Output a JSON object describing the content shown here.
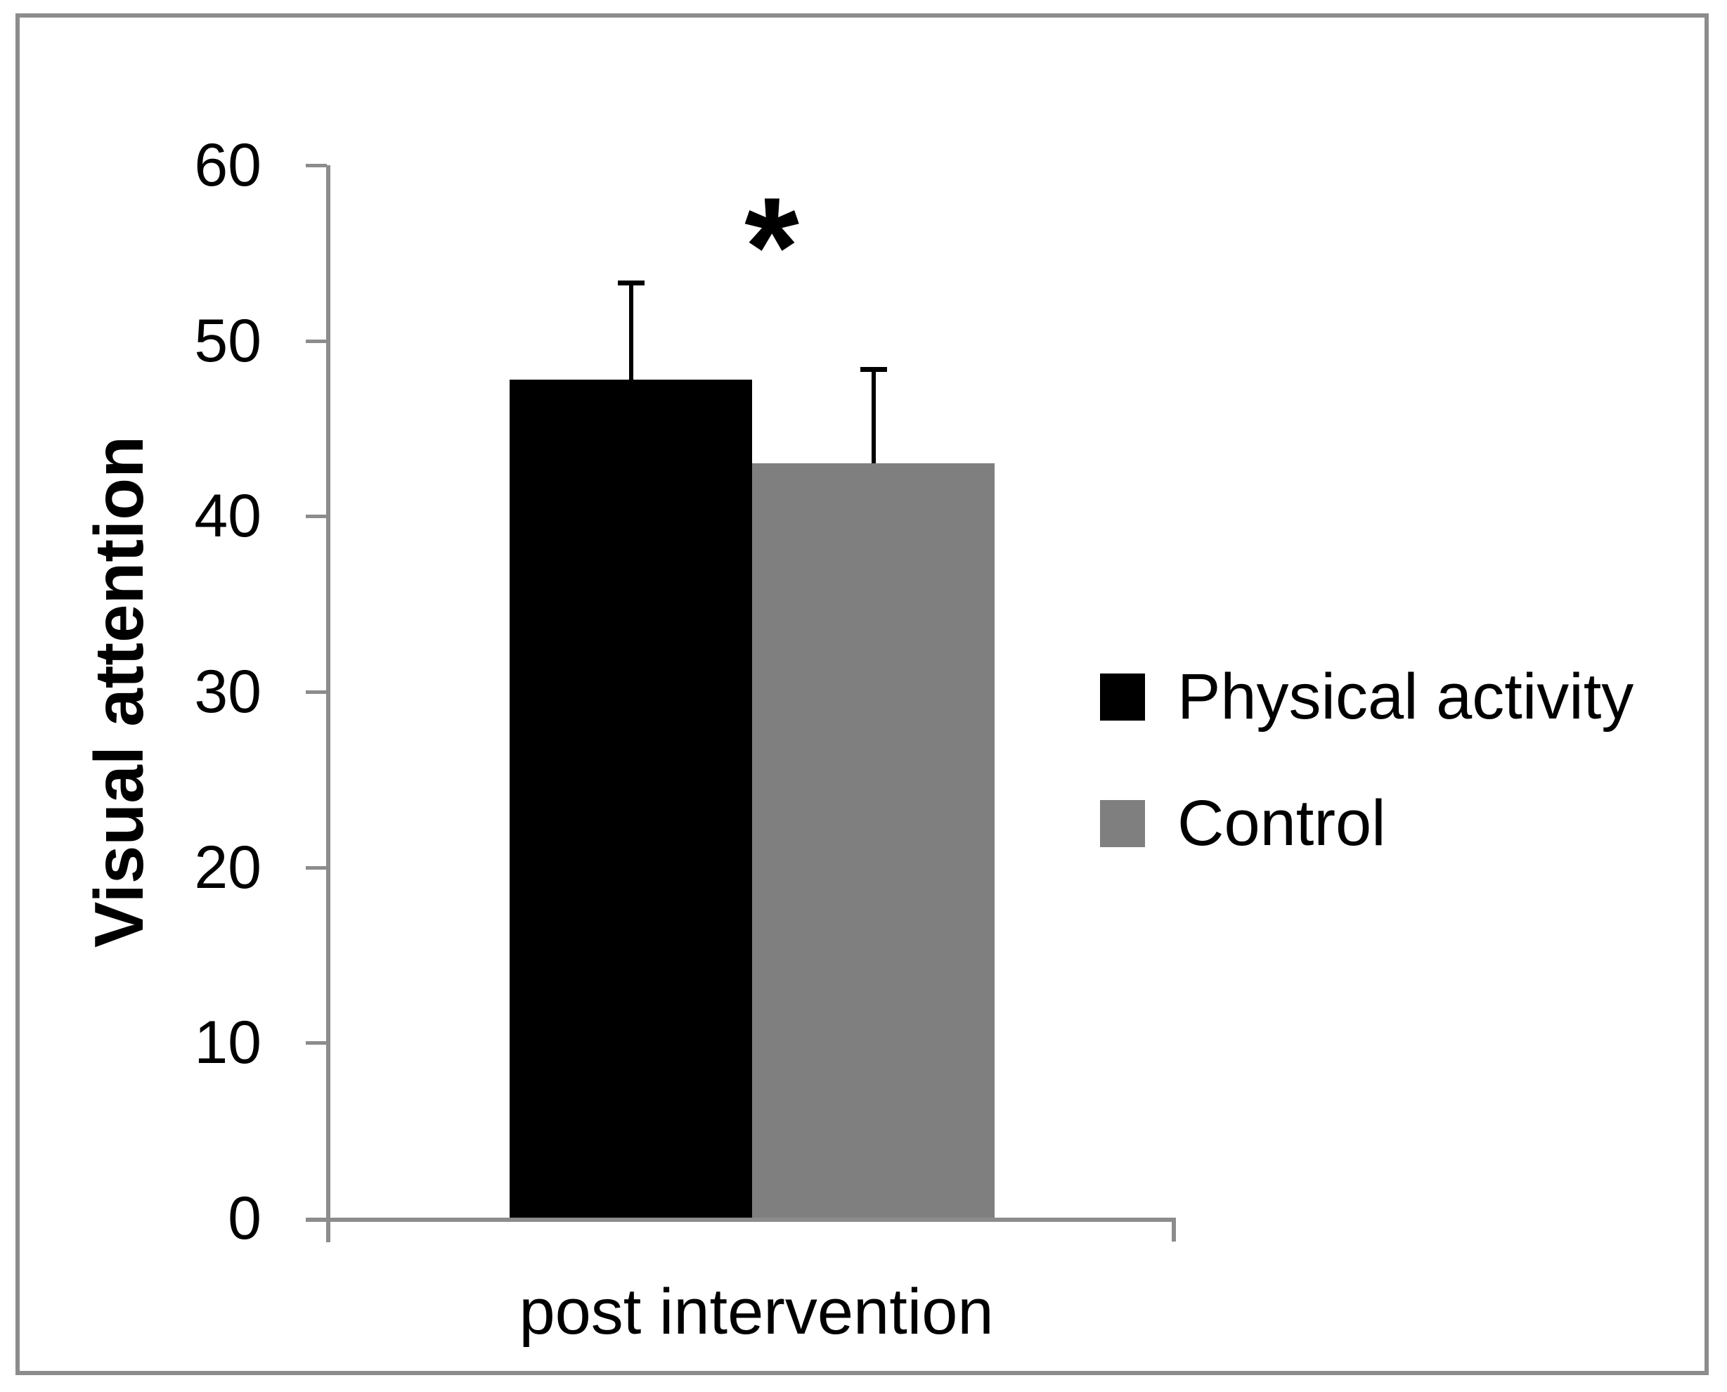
{
  "figure": {
    "background_color": "#ffffff",
    "border_color": "#8c8c8c",
    "axis_color": "#8c8c8c"
  },
  "chart_data": {
    "type": "bar",
    "title": "",
    "categories": [
      "post intervention"
    ],
    "series": [
      {
        "name": "Physical activity",
        "values": [
          47.8
        ],
        "error_plus": [
          5.5
        ],
        "color": "#000000"
      },
      {
        "name": "Control",
        "values": [
          43.0
        ],
        "error_plus": [
          5.4
        ],
        "color": "#7f7f7f"
      }
    ],
    "ylabel": "Visual attention",
    "ylim": [
      0,
      60
    ],
    "yticks": [
      0,
      10,
      20,
      30,
      40,
      50,
      60
    ],
    "grid": false,
    "legend_position": "right-middle",
    "annotation": {
      "symbol": "*"
    }
  }
}
